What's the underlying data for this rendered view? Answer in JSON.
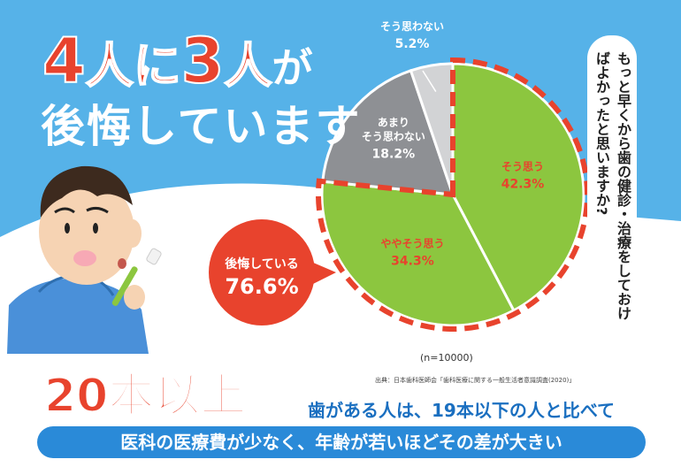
{
  "headline": {
    "part1": "4",
    "part2": "人に",
    "part3": "3",
    "part4": "人",
    "part5": "が",
    "line2": "後悔しています"
  },
  "question": "もっと早くから歯の健診・治療をしておけばよかったと思いますか?",
  "regret": {
    "label": "後悔している",
    "value": "76.6%"
  },
  "sample": "(n=10000)",
  "source": "出典：日本歯科医師会「歯科医療に関する一般生活者意識調査(2020)」",
  "footer": {
    "big": "20本以上",
    "sub": "歯がある人は、19本以下の人と比べて",
    "banner": "医科の医療費が少なく、年齢が若いほどその差が大きい"
  },
  "colors": {
    "background": "#56b2e8",
    "green": "#8cc63f",
    "gray": "#8e9094",
    "lightgray": "#d2d3d5",
    "red": "#e8432d",
    "accent_blue": "#1a6fc0"
  },
  "chart_data": {
    "type": "pie",
    "title": "",
    "slices": [
      {
        "name": "そう思う",
        "value": 42.3,
        "label": "42.3%",
        "color": "#8cc63f"
      },
      {
        "name": "ややそう思う",
        "value": 34.3,
        "label": "34.3%",
        "color": "#8cc63f"
      },
      {
        "name": "あまりそう思わない",
        "value": 18.2,
        "label": "18.2%",
        "color": "#8e9094"
      },
      {
        "name": "そう思わない",
        "value": 5.2,
        "label": "5.2%",
        "color": "#d2d3d5"
      }
    ],
    "start": "top",
    "direction": "clockwise",
    "highlight": {
      "label": "後悔している",
      "value": 76.6,
      "slices": [
        "そう思う",
        "ややそう思う"
      ]
    },
    "n": "(n=10000)"
  }
}
